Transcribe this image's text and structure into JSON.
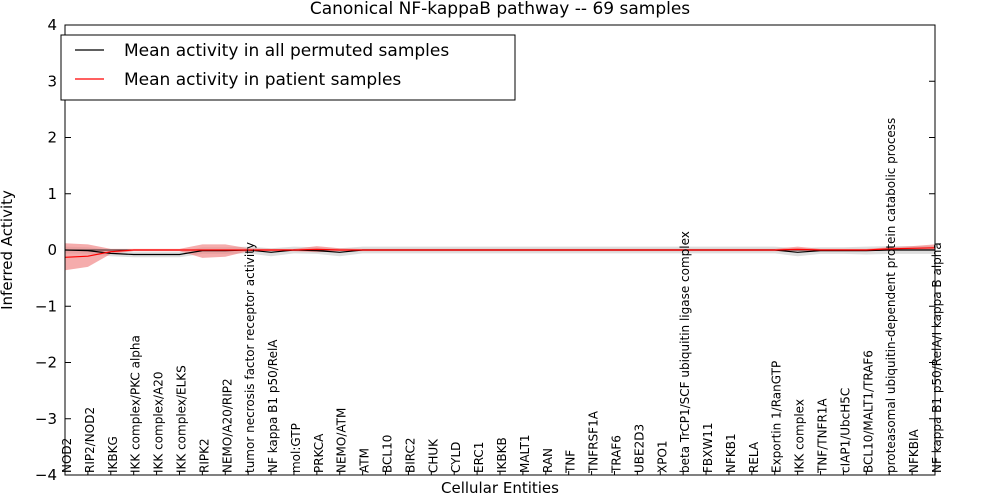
{
  "chart_data": {
    "type": "line",
    "title": "Canonical NF-kappaB pathway -- 69 samples",
    "xlabel": "Cellular Entities",
    "ylabel": "Inferred Activity",
    "ylim": [
      -4,
      4
    ],
    "yticks": [
      4,
      3,
      2,
      1,
      0,
      -1,
      -2,
      -3,
      -4
    ],
    "ytick_labels": [
      "4",
      "3",
      "2",
      "1",
      "0",
      "−1",
      "−2",
      "−3",
      "−4"
    ],
    "grid": false,
    "legend_position": "top-left",
    "categories": [
      "NOD2",
      "RIP2/NOD2",
      "IKBKG",
      "IKK complex/PKC alpha",
      "IKK complex/A20",
      "IKK complex/ELKS",
      "RIPK2",
      "NEMO/A20/RIP2",
      "tumor necrosis factor receptor activity",
      "NF kappa B1 p50/RelA",
      "mol:GTP",
      "PRKCA",
      "NEMO/ATM",
      "ATM",
      "BCL10",
      "BIRC2",
      "CHUK",
      "CYLD",
      "ERC1",
      "IKBKB",
      "MALT1",
      "RAN",
      "TNF",
      "TNFRSF1A",
      "TRAF6",
      "UBE2D3",
      "XPO1",
      "beta TrCP1/SCF ubiquitin ligase complex",
      "FBXW11",
      "NFKB1",
      "RELA",
      "Exportin 1/RanGTP",
      "IKK complex",
      "TNF/TNFR1A",
      "cIAP1/UbcH5C",
      "BCL10/MALT1/TRAF6",
      "proteasomal ubiquitin-dependent protein catabolic process",
      "NFKBIA",
      "NF kappa B1 p50/RelA/I kappa B alpha"
    ],
    "series": [
      {
        "name": "Mean activity in all permuted samples",
        "color": "#000000",
        "band_color": "#c8c8c8",
        "values": [
          0.0,
          -0.01,
          -0.06,
          -0.08,
          -0.08,
          -0.08,
          -0.01,
          -0.01,
          0.0,
          -0.04,
          0.0,
          -0.01,
          -0.04,
          0.0,
          0.0,
          0.0,
          0.0,
          0.0,
          0.0,
          0.0,
          0.0,
          0.0,
          0.0,
          0.0,
          0.0,
          0.0,
          0.0,
          0.0,
          0.0,
          0.0,
          0.0,
          0.0,
          -0.04,
          -0.01,
          -0.01,
          -0.01,
          0.0,
          0.0,
          0.0
        ],
        "lower": [
          -0.06,
          -0.07,
          -0.11,
          -0.13,
          -0.13,
          -0.13,
          -0.07,
          -0.07,
          -0.06,
          -0.11,
          -0.06,
          -0.07,
          -0.11,
          -0.06,
          -0.06,
          -0.06,
          -0.06,
          -0.06,
          -0.06,
          -0.06,
          -0.06,
          -0.06,
          -0.06,
          -0.06,
          -0.06,
          -0.06,
          -0.06,
          -0.06,
          -0.06,
          -0.06,
          -0.06,
          -0.06,
          -0.11,
          -0.07,
          -0.07,
          -0.08,
          -0.07,
          -0.07,
          -0.07
        ],
        "upper": [
          0.06,
          0.05,
          0.0,
          -0.03,
          -0.03,
          -0.03,
          0.05,
          0.05,
          0.06,
          0.03,
          0.06,
          0.05,
          0.03,
          0.06,
          0.06,
          0.06,
          0.06,
          0.06,
          0.06,
          0.06,
          0.06,
          0.06,
          0.06,
          0.06,
          0.06,
          0.06,
          0.06,
          0.06,
          0.06,
          0.06,
          0.06,
          0.06,
          0.03,
          0.05,
          0.05,
          0.06,
          0.07,
          0.07,
          0.07
        ]
      },
      {
        "name": "Mean activity in patient samples",
        "color": "#ff0000",
        "band_color": "#f08080",
        "values": [
          -0.13,
          -0.11,
          -0.03,
          0.0,
          0.0,
          0.0,
          0.0,
          0.0,
          0.0,
          0.0,
          0.0,
          0.01,
          0.0,
          0.0,
          0.0,
          0.0,
          0.0,
          0.0,
          0.0,
          0.0,
          0.0,
          0.0,
          0.0,
          0.0,
          0.0,
          0.0,
          0.0,
          0.0,
          0.0,
          0.0,
          0.0,
          0.0,
          0.01,
          0.0,
          0.0,
          0.0,
          0.02,
          0.03,
          0.04
        ],
        "lower": [
          -0.36,
          -0.3,
          -0.07,
          -0.02,
          -0.02,
          -0.02,
          -0.14,
          -0.12,
          -0.02,
          -0.02,
          -0.02,
          -0.04,
          -0.02,
          -0.02,
          -0.02,
          -0.02,
          -0.02,
          -0.02,
          -0.02,
          -0.02,
          -0.02,
          -0.02,
          -0.02,
          -0.02,
          -0.02,
          -0.02,
          -0.02,
          -0.02,
          -0.02,
          -0.02,
          -0.02,
          -0.02,
          -0.02,
          -0.02,
          -0.02,
          -0.02,
          -0.01,
          0.0,
          0.0
        ],
        "upper": [
          0.12,
          0.1,
          0.02,
          0.02,
          0.02,
          0.02,
          0.1,
          0.1,
          0.03,
          0.02,
          0.02,
          0.07,
          0.03,
          0.02,
          0.02,
          0.02,
          0.02,
          0.02,
          0.02,
          0.02,
          0.02,
          0.02,
          0.02,
          0.02,
          0.02,
          0.02,
          0.02,
          0.02,
          0.02,
          0.02,
          0.02,
          0.02,
          0.06,
          0.02,
          0.02,
          0.02,
          0.05,
          0.07,
          0.1
        ]
      }
    ]
  }
}
